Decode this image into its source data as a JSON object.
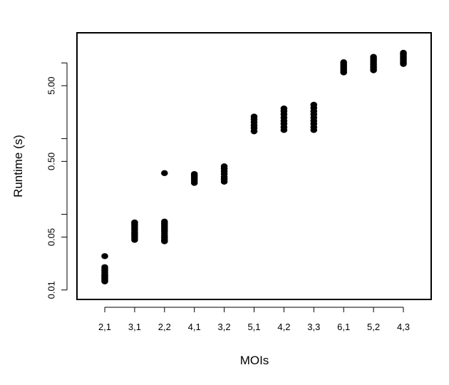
{
  "chart_data": {
    "type": "scatter",
    "title": "",
    "xlabel": "MOIs",
    "ylabel": "Runtime (s)",
    "y_scale": "log",
    "ylim": [
      0.0075,
      25
    ],
    "y_ticks": [
      0.01,
      0.05,
      0.5,
      5.0
    ],
    "y_tick_labels": [
      "0.01",
      "0.05",
      "0.50",
      "5.00"
    ],
    "y_minor_ticks": [
      0.1,
      1,
      10
    ],
    "grid": false,
    "legend": "none",
    "categories": [
      "2,1",
      "3,1",
      "2,2",
      "4,1",
      "3,2",
      "5,1",
      "4,2",
      "3,3",
      "6,1",
      "5,2",
      "4,3"
    ],
    "series": [
      {
        "values": [
          [
            0.028,
            0.02,
            0.019,
            0.018,
            0.017,
            0.016,
            0.0155,
            0.015,
            0.0145,
            0.014,
            0.0135,
            0.013
          ],
          [
            0.078,
            0.074,
            0.07,
            0.066,
            0.062,
            0.058,
            0.055,
            0.052,
            0.049,
            0.046
          ],
          [
            0.08,
            0.076,
            0.072,
            0.068,
            0.064,
            0.06,
            0.056,
            0.052,
            0.049,
            0.046,
            0.044,
            0.35
          ],
          [
            0.34,
            0.32,
            0.3,
            0.28,
            0.26
          ],
          [
            0.43,
            0.4,
            0.37,
            0.34,
            0.31,
            0.29,
            0.27
          ],
          [
            1.95,
            1.8,
            1.65,
            1.5,
            1.38,
            1.25
          ],
          [
            2.5,
            2.3,
            2.1,
            1.9,
            1.72,
            1.57,
            1.42,
            1.3
          ],
          [
            2.8,
            2.55,
            2.3,
            2.1,
            1.9,
            1.72,
            1.57,
            1.42,
            1.3
          ],
          [
            10.2,
            9.6,
            9.0,
            8.5,
            8.0,
            7.5
          ],
          [
            12.0,
            11.4,
            10.8,
            10.2,
            9.6,
            9.0,
            8.5,
            8.0
          ],
          [
            13.6,
            13.0,
            12.4,
            11.8,
            11.2,
            10.6,
            10.1,
            9.7
          ]
        ]
      }
    ],
    "marker_color": "#000000"
  }
}
